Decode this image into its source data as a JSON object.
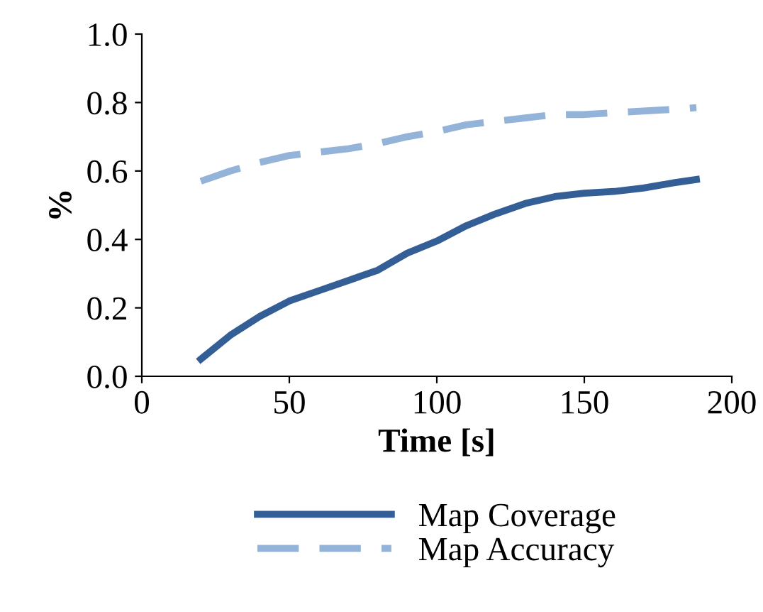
{
  "chart_data": {
    "type": "line",
    "xlabel": "Time [s]",
    "ylabel": "%",
    "xlim": [
      0,
      200
    ],
    "xticks": [
      0,
      50,
      100,
      150,
      200
    ],
    "ylim": [
      0,
      1
    ],
    "yticks": [
      {
        "value": 0,
        "label": "0.0"
      },
      {
        "value": 0.2,
        "label": "0.2"
      },
      {
        "value": 0.4,
        "label": "0.4"
      },
      {
        "value": 0.6,
        "label": "0.6"
      },
      {
        "value": 0.8,
        "label": "0.8"
      },
      {
        "value": 1,
        "label": "1.0"
      }
    ],
    "grid": false,
    "legend": "bottom",
    "marker": "none",
    "x": [
      20,
      30,
      40,
      50,
      60,
      70,
      80,
      90,
      100,
      110,
      120,
      130,
      140,
      150,
      160,
      170,
      180,
      188
    ],
    "series": [
      {
        "name": "Map Coverage",
        "color": "#335e96",
        "line_style": "solid",
        "values": [
          0.05,
          0.12,
          0.175,
          0.22,
          0.25,
          0.28,
          0.31,
          0.36,
          0.395,
          0.44,
          0.475,
          0.505,
          0.525,
          0.535,
          0.54,
          0.55,
          0.565,
          0.575
        ]
      },
      {
        "name": "Map Accuracy",
        "color": "#93b3d9",
        "line_style": "dashed",
        "values": [
          0.57,
          0.6,
          0.625,
          0.645,
          0.655,
          0.665,
          0.68,
          0.7,
          0.715,
          0.735,
          0.745,
          0.755,
          0.765,
          0.765,
          0.77,
          0.775,
          0.78,
          0.785
        ]
      }
    ]
  }
}
